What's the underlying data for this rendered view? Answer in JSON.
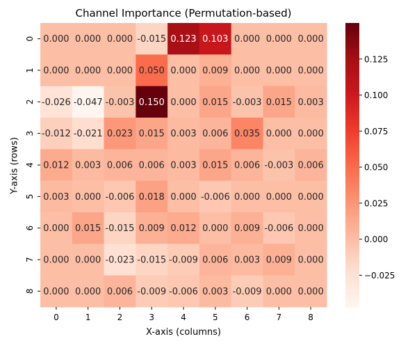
{
  "chart_data": {
    "type": "heatmap",
    "title": "Channel Importance (Permutation-based)",
    "xlabel": "X-axis (columns)",
    "ylabel": "Y-axis (rows)",
    "x_categories": [
      "0",
      "1",
      "2",
      "3",
      "4",
      "5",
      "6",
      "7",
      "8"
    ],
    "y_categories": [
      "0",
      "1",
      "2",
      "3",
      "4",
      "5",
      "6",
      "7",
      "8"
    ],
    "values": [
      [
        0.0,
        0.0,
        0.0,
        -0.015,
        0.123,
        0.103,
        0.0,
        0.0,
        0.0
      ],
      [
        0.0,
        0.0,
        0.0,
        0.05,
        0.0,
        0.009,
        0.0,
        0.0,
        0.0
      ],
      [
        -0.026,
        -0.047,
        -0.003,
        0.15,
        0.0,
        0.015,
        -0.003,
        0.015,
        0.003
      ],
      [
        -0.012,
        -0.021,
        0.023,
        0.015,
        0.003,
        0.006,
        0.035,
        0.0,
        0.0
      ],
      [
        0.012,
        0.003,
        0.006,
        0.006,
        0.003,
        0.015,
        0.006,
        -0.003,
        0.006
      ],
      [
        0.003,
        0.0,
        -0.006,
        0.018,
        0.0,
        -0.006,
        0.0,
        0.0,
        0.0
      ],
      [
        0.0,
        0.015,
        -0.015,
        0.009,
        0.012,
        0.0,
        0.009,
        -0.006,
        0.0
      ],
      [
        0.0,
        0.0,
        -0.023,
        -0.015,
        -0.009,
        0.006,
        0.003,
        0.009,
        0.0
      ],
      [
        0.0,
        0.0,
        0.006,
        -0.009,
        -0.006,
        0.003,
        -0.009,
        0.0,
        0.0
      ]
    ],
    "colorbar": {
      "colormap": "Reds",
      "vmin": -0.047,
      "vmax": 0.15,
      "ticks": [
        -0.025,
        0.0,
        0.025,
        0.05,
        0.075,
        0.1,
        0.125
      ],
      "tick_labels": [
        "−0.025",
        "0.000",
        "0.025",
        "0.050",
        "0.075",
        "0.100",
        "0.125"
      ]
    },
    "annotations": true,
    "annotation_format": "3 decimals",
    "legend": "colorbar right"
  }
}
